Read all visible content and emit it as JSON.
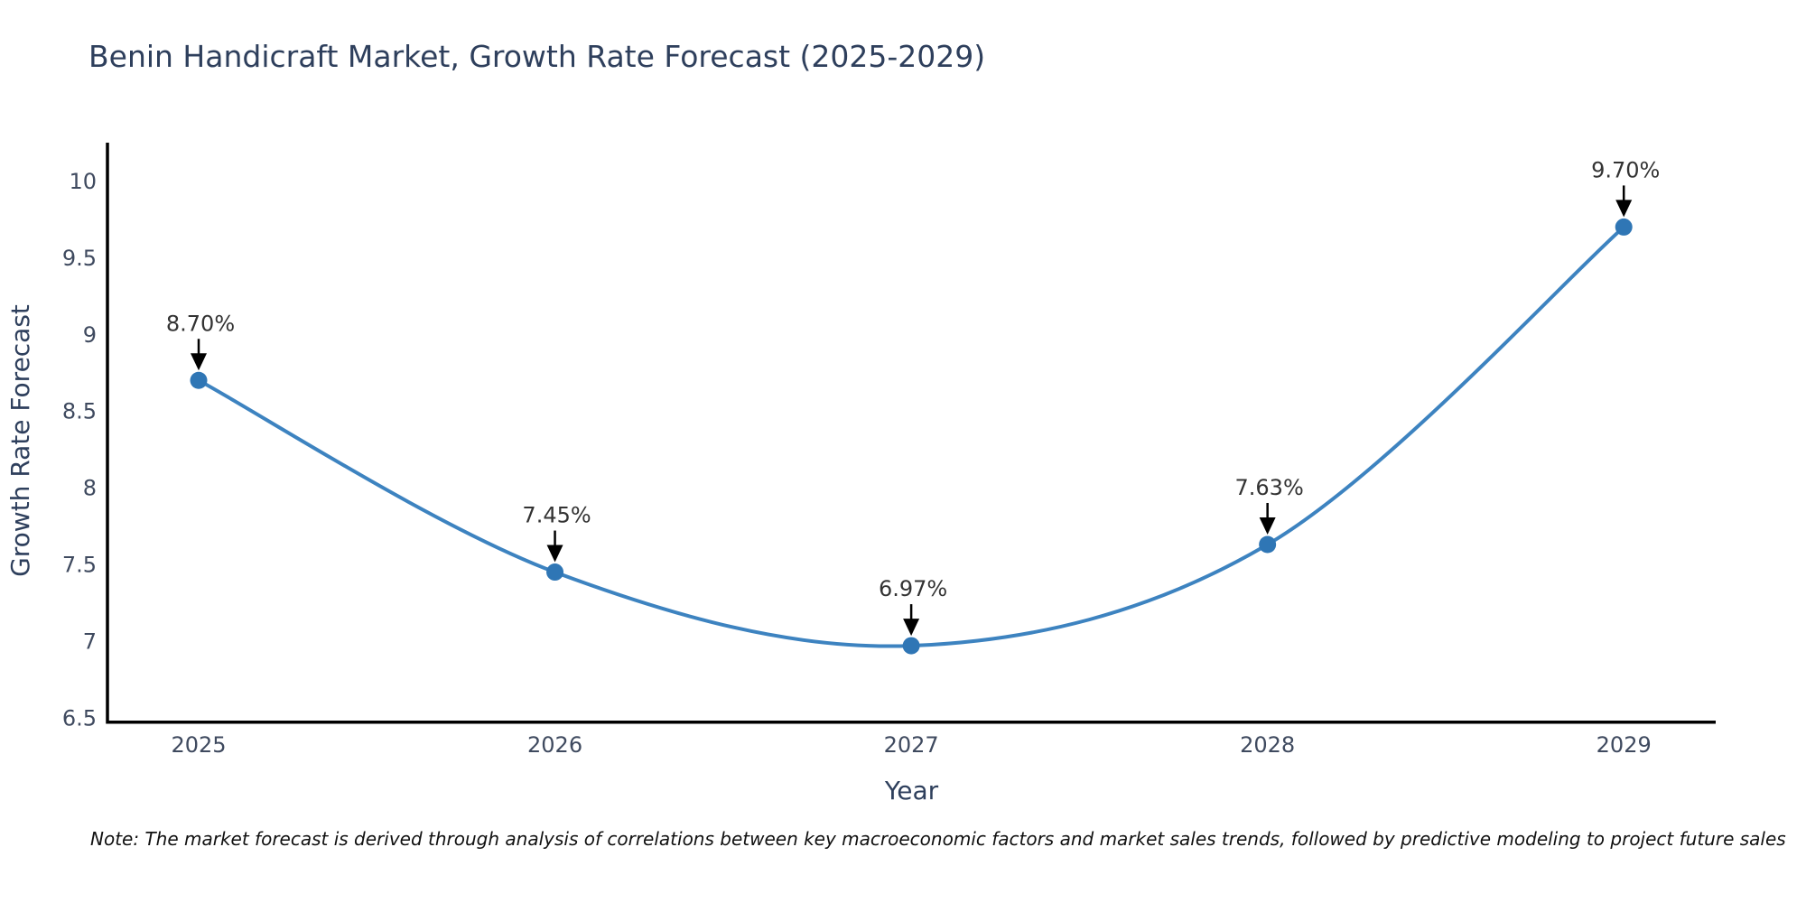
{
  "title": "Benin Handicraft Market, Growth Rate Forecast (2025-2029)",
  "note": "Note: The market forecast is derived through analysis of correlations between key macroeconomic factors and market sales trends, followed by predictive modeling to project future sales",
  "chart_data": {
    "type": "line",
    "title": "Benin Handicraft Market, Growth Rate Forecast (2025-2029)",
    "xlabel": "Year",
    "ylabel": "Growth Rate Forecast",
    "x": [
      2025,
      2026,
      2027,
      2028,
      2029
    ],
    "series": [
      {
        "name": "Growth Rate Forecast",
        "values": [
          8.7,
          7.45,
          6.97,
          7.63,
          9.7
        ]
      }
    ],
    "point_labels": [
      "8.70%",
      "7.45%",
      "6.97%",
      "7.63%",
      "9.70%"
    ],
    "yticks": [
      6.5,
      7,
      7.5,
      8,
      8.5,
      9,
      9.5,
      10
    ],
    "xticks": [
      2025,
      2026,
      2027,
      2028,
      2029
    ],
    "xlim": [
      2024.744,
      2029.258
    ],
    "ylim": [
      6.47,
      10.25
    ],
    "grid": false,
    "legend": "none",
    "line_shape": "spline",
    "annotations_have_arrows": true,
    "colors": {
      "line": "#3d83c0",
      "marker": "#2f76b5",
      "annotation_text": "#333333",
      "annotation_arrow": "#000000",
      "title": "#2e3f5c",
      "axis_title": "#2e3f5c",
      "tick": "#3f4a5f",
      "axis_line": "#000000",
      "note": "#111111",
      "background": "#ffffff"
    }
  }
}
